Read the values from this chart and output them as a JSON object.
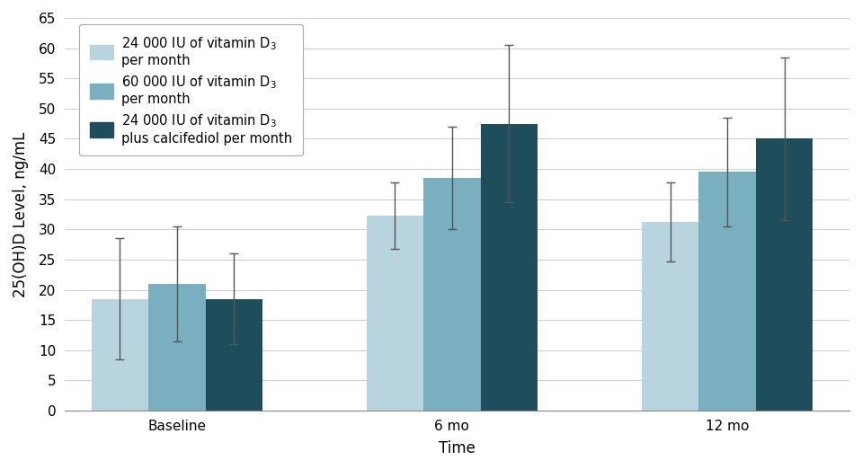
{
  "categories": [
    "Baseline",
    "6 mo",
    "12 mo"
  ],
  "series": [
    {
      "label": "24 000 IU of vitamin D$_3$\nper month",
      "color": "#b8d4df",
      "values": [
        18.5,
        32.2,
        31.2
      ],
      "errors": [
        10.0,
        5.5,
        6.5
      ]
    },
    {
      "label": "60 000 IU of vitamin D$_3$\nper month",
      "color": "#7aafbf",
      "values": [
        21.0,
        38.5,
        39.5
      ],
      "errors": [
        9.5,
        8.5,
        9.0
      ]
    },
    {
      "label": "24 000 IU of vitamin D$_3$\nplus calcifediol per month",
      "color": "#1e4d5c",
      "values": [
        18.5,
        47.5,
        45.0
      ],
      "errors": [
        7.5,
        13.0,
        13.5
      ]
    }
  ],
  "ylabel": "25(OH)D Level, ng/mL",
  "xlabel": "Time",
  "ylim": [
    0,
    65
  ],
  "yticks": [
    0,
    5,
    10,
    15,
    20,
    25,
    30,
    35,
    40,
    45,
    50,
    55,
    60,
    65
  ],
  "bar_width": 0.28,
  "group_positions": [
    0.45,
    1.8,
    3.15
  ],
  "background_color": "#ffffff",
  "grid_color": "#d0d0d0",
  "error_color": "#555555",
  "legend_fontsize": 10.5,
  "axis_fontsize": 12,
  "tick_fontsize": 11
}
